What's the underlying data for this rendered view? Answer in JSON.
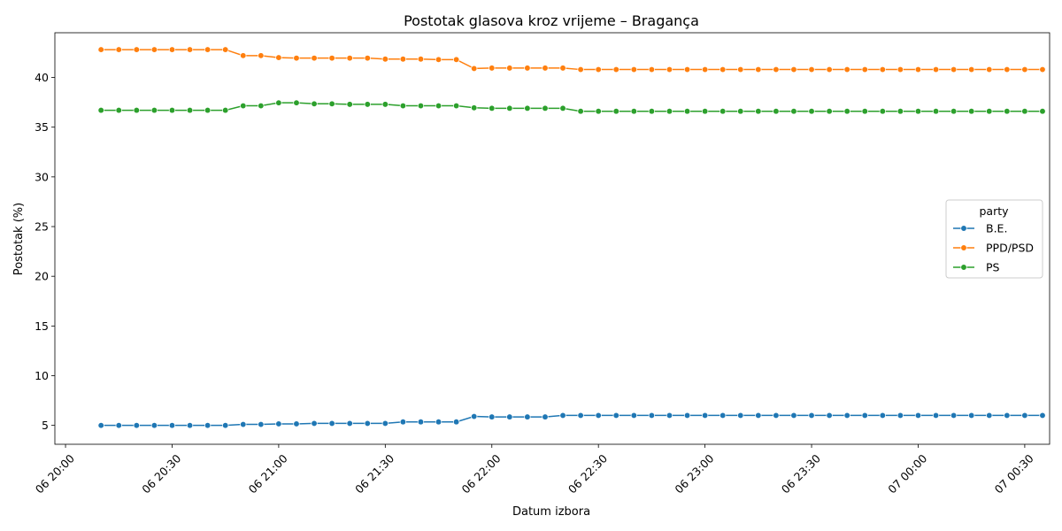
{
  "chart_data": {
    "type": "line",
    "title": "Postotak glasova kroz vrijeme – Bragança",
    "xlabel": "Datum izbora",
    "ylabel": "Postotak (%)",
    "x_start": "06 20:10",
    "x_step_minutes": 5,
    "xlim": [
      "06 19:57",
      "07 00:37"
    ],
    "ylim": [
      3.1,
      44.5
    ],
    "x_ticks": [
      "06 20:00",
      "06 20:30",
      "06 21:00",
      "06 21:30",
      "06 22:00",
      "06 22:30",
      "06 23:00",
      "06 23:30",
      "07 00:00",
      "07 00:30"
    ],
    "y_ticks": [
      5,
      10,
      15,
      20,
      25,
      30,
      35,
      40
    ],
    "legend": {
      "title": "party",
      "position": "center-right"
    },
    "grid": false,
    "series": [
      {
        "name": "B.E.",
        "color": "#1f77b4",
        "values": [
          5.0,
          5.0,
          5.0,
          5.0,
          5.0,
          5.0,
          5.0,
          5.0,
          5.1,
          5.1,
          5.15,
          5.15,
          5.2,
          5.2,
          5.2,
          5.2,
          5.2,
          5.35,
          5.35,
          5.35,
          5.35,
          5.9,
          5.85,
          5.85,
          5.85,
          5.85,
          6.0,
          6.0,
          6.0,
          6.0,
          6.0,
          6.0,
          6.0,
          6.0,
          6.0,
          6.0,
          6.0,
          6.0,
          6.0,
          6.0,
          6.0,
          6.0,
          6.0,
          6.0,
          6.0,
          6.0,
          6.0,
          6.0,
          6.0,
          6.0,
          6.0,
          6.0,
          6.0,
          6.0
        ]
      },
      {
        "name": "PPD/PSD",
        "color": "#ff7f0e",
        "values": [
          42.8,
          42.8,
          42.8,
          42.8,
          42.8,
          42.8,
          42.8,
          42.8,
          42.2,
          42.2,
          42.0,
          41.95,
          41.95,
          41.95,
          41.95,
          41.95,
          41.85,
          41.85,
          41.85,
          41.8,
          41.8,
          40.9,
          40.95,
          40.95,
          40.95,
          40.95,
          40.95,
          40.8,
          40.8,
          40.8,
          40.8,
          40.8,
          40.8,
          40.8,
          40.8,
          40.8,
          40.8,
          40.8,
          40.8,
          40.8,
          40.8,
          40.8,
          40.8,
          40.8,
          40.8,
          40.8,
          40.8,
          40.8,
          40.8,
          40.8,
          40.8,
          40.8,
          40.8,
          40.8
        ]
      },
      {
        "name": "PS",
        "color": "#2ca02c",
        "values": [
          36.7,
          36.7,
          36.7,
          36.7,
          36.7,
          36.7,
          36.7,
          36.7,
          37.15,
          37.15,
          37.45,
          37.45,
          37.35,
          37.35,
          37.3,
          37.3,
          37.3,
          37.15,
          37.15,
          37.15,
          37.15,
          36.95,
          36.9,
          36.9,
          36.9,
          36.9,
          36.9,
          36.6,
          36.6,
          36.6,
          36.6,
          36.6,
          36.6,
          36.6,
          36.6,
          36.6,
          36.6,
          36.6,
          36.6,
          36.6,
          36.6,
          36.6,
          36.6,
          36.6,
          36.6,
          36.6,
          36.6,
          36.6,
          36.6,
          36.6,
          36.6,
          36.6,
          36.6,
          36.6
        ]
      }
    ]
  }
}
